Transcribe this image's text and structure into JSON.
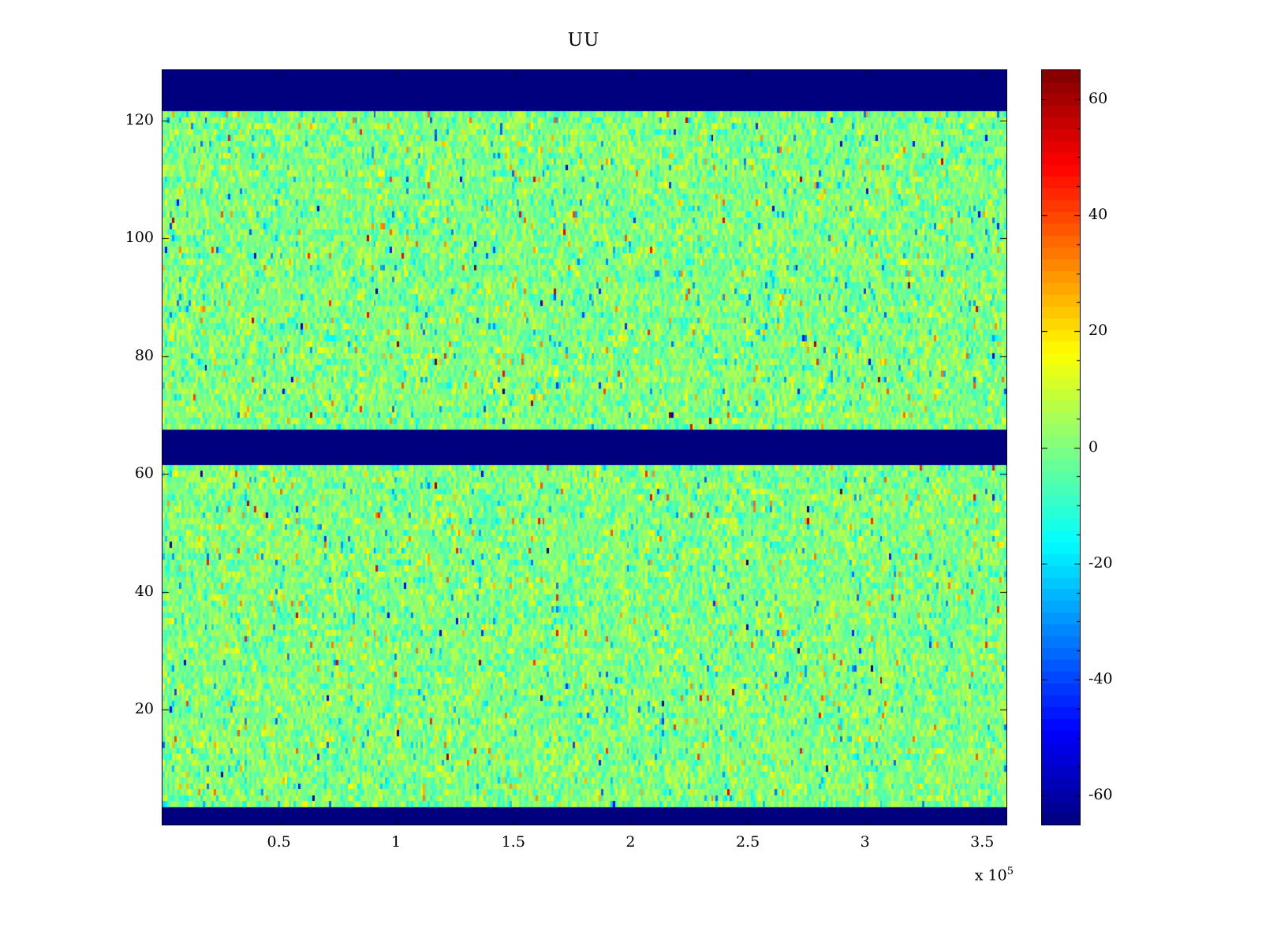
{
  "figure": {
    "title": "UU",
    "colors": {
      "background": "#ffffff",
      "axis": "#000000",
      "band_blue": "#00008f"
    }
  },
  "chart_data": {
    "type": "heatmap",
    "title": "UU",
    "xlabel": "",
    "ylabel": "",
    "colormap": "jet",
    "x_range": [
      0,
      360000
    ],
    "x_ticks": [
      {
        "value": 50000,
        "label": "0.5"
      },
      {
        "value": 100000,
        "label": "1"
      },
      {
        "value": 150000,
        "label": "1.5"
      },
      {
        "value": 200000,
        "label": "2"
      },
      {
        "value": 250000,
        "label": "2.5"
      },
      {
        "value": 300000,
        "label": "3"
      },
      {
        "value": 350000,
        "label": "3.5"
      }
    ],
    "x_scale": {
      "text": "x 10",
      "exponent": "5"
    },
    "y_range": [
      0.5,
      128.5
    ],
    "y_ticks": [
      20,
      40,
      60,
      80,
      100,
      120
    ],
    "rows": 128,
    "cols": 360,
    "color_range": [
      -65,
      65
    ],
    "colorbar_ticks": [
      60,
      40,
      20,
      0,
      -20,
      -40,
      -60
    ],
    "colorbar_minor_tick_step": 5,
    "blue_band_rows": [
      [
        1,
        3
      ],
      [
        62,
        67
      ],
      [
        122,
        128
      ]
    ],
    "band_value": -65,
    "noise": {
      "mean": 0,
      "base_std": 6.5,
      "mid_fraction": 0.15,
      "mid_std": 13,
      "outlier_fraction": 0.03,
      "outlier_std": 26
    },
    "seed": 20240507,
    "legend": "none",
    "grid": "off"
  }
}
